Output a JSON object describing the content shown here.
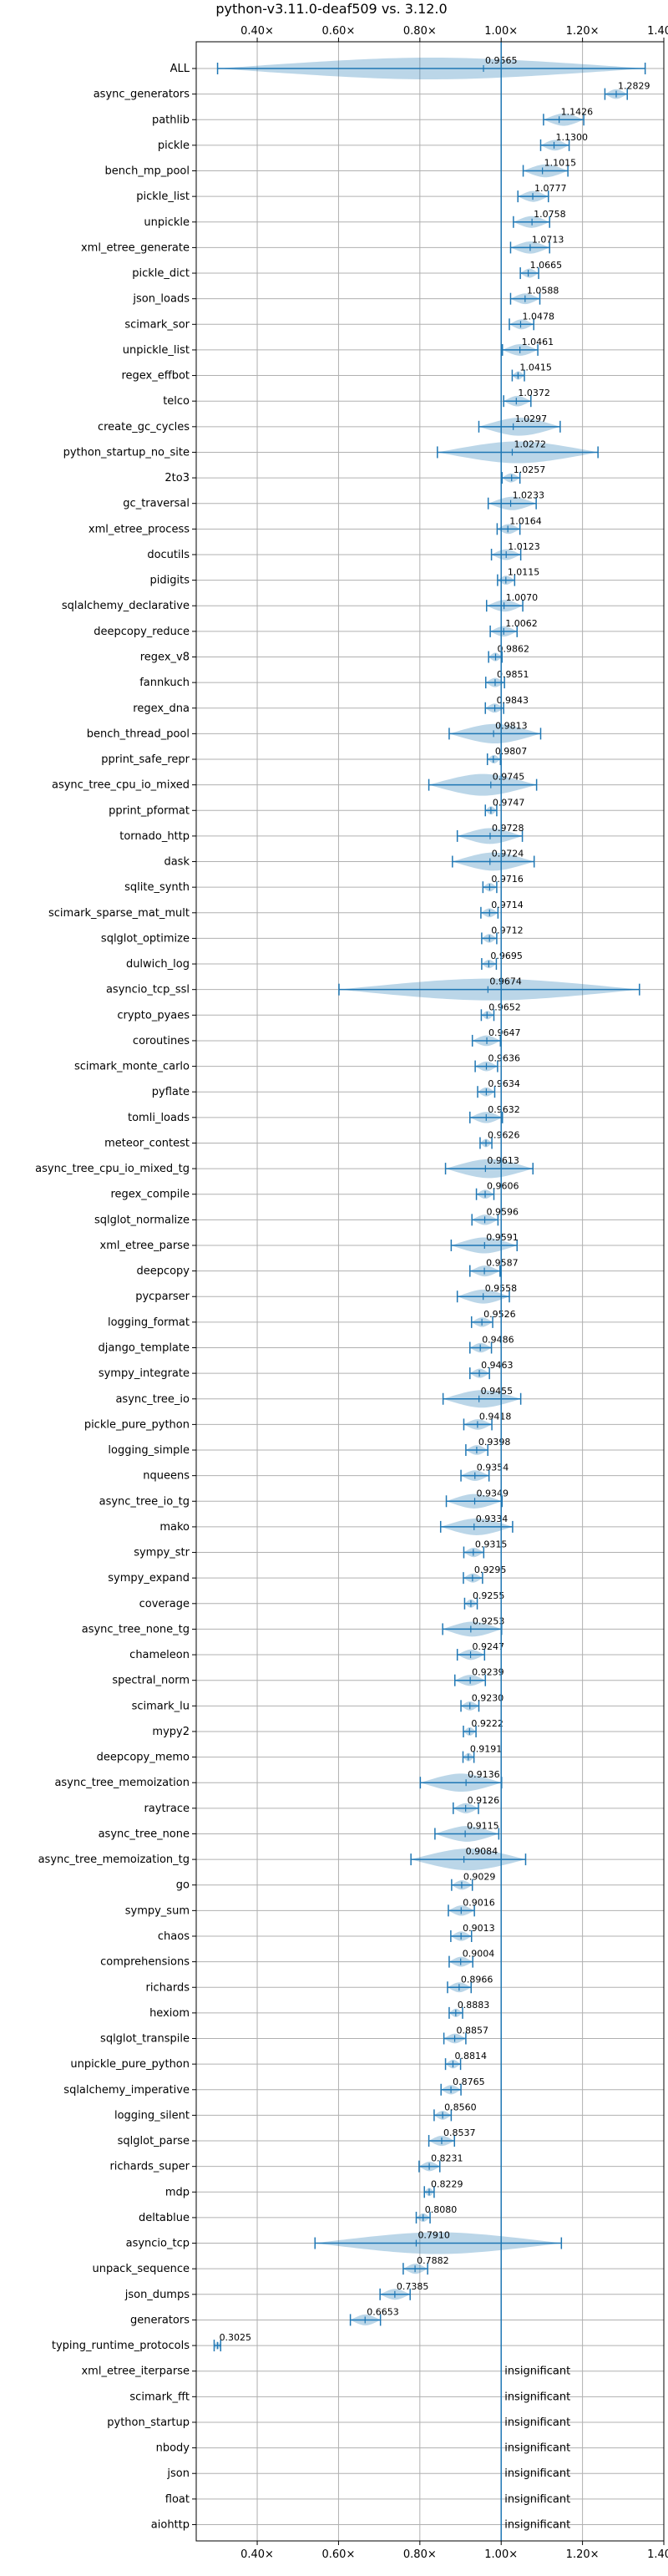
{
  "chart_data": {
    "type": "violin",
    "title": "python-v3.11.0-deaf509 vs. 3.12.0",
    "xlabel": "",
    "ylabel": "",
    "x_range": [
      0.25,
      1.4
    ],
    "x_ticks": [
      0.4,
      0.6,
      0.8,
      1.0,
      1.2,
      1.4
    ],
    "x_tick_labels": [
      "0.40×",
      "0.60×",
      "0.80×",
      "1.00×",
      "1.20×",
      "1.40×"
    ],
    "reference_line": 1.0,
    "grid": true,
    "colors": {
      "violin": "#1f77b4",
      "violin_alpha": 0.3,
      "line": "#1f77b4",
      "grid": "#b0b0b0"
    },
    "insignificant_label": "insignificant",
    "categories": [
      {
        "name": "ALL",
        "mean": 0.9565,
        "min": 0.3025,
        "max": 1.3541
      },
      {
        "name": "async_generators",
        "mean": 1.2829,
        "min": 1.2551,
        "max": 1.3101
      },
      {
        "name": "pathlib",
        "mean": 1.1426,
        "min": 1.1041,
        "max": 1.2031
      },
      {
        "name": "pickle",
        "mean": 1.13,
        "min": 1.0971,
        "max": 1.1671
      },
      {
        "name": "bench_mp_pool",
        "mean": 1.1015,
        "min": 1.0541,
        "max": 1.1641
      },
      {
        "name": "pickle_list",
        "mean": 1.0777,
        "min": 1.0411,
        "max": 1.1161
      },
      {
        "name": "unpickle",
        "mean": 1.0758,
        "min": 1.0301,
        "max": 1.1191
      },
      {
        "name": "xml_etree_generate",
        "mean": 1.0713,
        "min": 1.0231,
        "max": 1.1191
      },
      {
        "name": "pickle_dict",
        "mean": 1.0665,
        "min": 1.0471,
        "max": 1.0921
      },
      {
        "name": "json_loads",
        "mean": 1.0588,
        "min": 1.0231,
        "max": 1.0951
      },
      {
        "name": "scimark_sor",
        "mean": 1.0478,
        "min": 1.0201,
        "max": 1.0801
      },
      {
        "name": "unpickle_list",
        "mean": 1.0461,
        "min": 1.0031,
        "max": 1.0901
      },
      {
        "name": "regex_effbot",
        "mean": 1.0415,
        "min": 1.0271,
        "max": 1.0571
      },
      {
        "name": "telco",
        "mean": 1.0372,
        "min": 1.0061,
        "max": 1.0731
      },
      {
        "name": "create_gc_cycles",
        "mean": 1.0297,
        "min": 0.9451,
        "max": 1.1451
      },
      {
        "name": "python_startup_no_site",
        "mean": 1.0272,
        "min": 0.8431,
        "max": 1.2381
      },
      {
        "name": "2to3",
        "mean": 1.0257,
        "min": 1.0021,
        "max": 1.0461
      },
      {
        "name": "gc_traversal",
        "mean": 1.0233,
        "min": 0.9681,
        "max": 1.0861
      },
      {
        "name": "xml_etree_process",
        "mean": 1.0164,
        "min": 0.9901,
        "max": 1.0461
      },
      {
        "name": "docutils",
        "mean": 1.0123,
        "min": 0.9761,
        "max": 1.0481
      },
      {
        "name": "pidigits",
        "mean": 1.0115,
        "min": 0.9911,
        "max": 1.0331
      },
      {
        "name": "sqlalchemy_declarative",
        "mean": 1.007,
        "min": 0.9641,
        "max": 1.0531
      },
      {
        "name": "deepcopy_reduce",
        "mean": 1.0062,
        "min": 0.9731,
        "max": 1.0391
      },
      {
        "name": "regex_v8",
        "mean": 0.9862,
        "min": 0.9691,
        "max": 1.0021
      },
      {
        "name": "fannkuch",
        "mean": 0.9851,
        "min": 0.9621,
        "max": 1.0081
      },
      {
        "name": "regex_dna",
        "mean": 0.9843,
        "min": 0.9611,
        "max": 1.0061
      },
      {
        "name": "bench_thread_pool",
        "mean": 0.9813,
        "min": 0.8721,
        "max": 1.0971
      },
      {
        "name": "pprint_safe_repr",
        "mean": 0.9807,
        "min": 0.9661,
        "max": 0.9981
      },
      {
        "name": "async_tree_cpu_io_mixed",
        "mean": 0.9745,
        "min": 0.8221,
        "max": 1.0871
      },
      {
        "name": "pprint_pformat",
        "mean": 0.9747,
        "min": 0.9611,
        "max": 0.9891
      },
      {
        "name": "tornado_http",
        "mean": 0.9728,
        "min": 0.8921,
        "max": 1.0521
      },
      {
        "name": "dask",
        "mean": 0.9724,
        "min": 0.8801,
        "max": 1.0811
      },
      {
        "name": "sqlite_synth",
        "mean": 0.9716,
        "min": 0.9551,
        "max": 0.9891
      },
      {
        "name": "scimark_sparse_mat_mult",
        "mean": 0.9714,
        "min": 0.9501,
        "max": 0.9921
      },
      {
        "name": "sqlglot_optimize",
        "mean": 0.9712,
        "min": 0.9521,
        "max": 0.9891
      },
      {
        "name": "dulwich_log",
        "mean": 0.9695,
        "min": 0.9521,
        "max": 0.9881
      },
      {
        "name": "asyncio_tcp_ssl",
        "mean": 0.9674,
        "min": 0.6011,
        "max": 1.3401
      },
      {
        "name": "crypto_pyaes",
        "mean": 0.9652,
        "min": 0.9511,
        "max": 0.9821
      },
      {
        "name": "coroutines",
        "mean": 0.9647,
        "min": 0.9291,
        "max": 0.9981
      },
      {
        "name": "scimark_monte_carlo",
        "mean": 0.9636,
        "min": 0.9361,
        "max": 0.9911
      },
      {
        "name": "pyflate",
        "mean": 0.9634,
        "min": 0.9421,
        "max": 0.9841
      },
      {
        "name": "tomli_loads",
        "mean": 0.9632,
        "min": 0.9231,
        "max": 1.0031
      },
      {
        "name": "meteor_contest",
        "mean": 0.9626,
        "min": 0.9481,
        "max": 0.9771
      },
      {
        "name": "async_tree_cpu_io_mixed_tg",
        "mean": 0.9613,
        "min": 0.8631,
        "max": 1.0781
      },
      {
        "name": "regex_compile",
        "mean": 0.9606,
        "min": 0.9391,
        "max": 0.9821
      },
      {
        "name": "sqlglot_normalize",
        "mean": 0.9596,
        "min": 0.9281,
        "max": 0.9921
      },
      {
        "name": "xml_etree_parse",
        "mean": 0.9591,
        "min": 0.8771,
        "max": 1.0391
      },
      {
        "name": "deepcopy",
        "mean": 0.9587,
        "min": 0.9231,
        "max": 0.9971
      },
      {
        "name": "pycparser",
        "mean": 0.9558,
        "min": 0.8921,
        "max": 1.0201
      },
      {
        "name": "logging_format",
        "mean": 0.9526,
        "min": 0.9271,
        "max": 0.9791
      },
      {
        "name": "django_template",
        "mean": 0.9486,
        "min": 0.9231,
        "max": 0.9761
      },
      {
        "name": "sympy_integrate",
        "mean": 0.9463,
        "min": 0.9231,
        "max": 0.9711
      },
      {
        "name": "async_tree_io",
        "mean": 0.9455,
        "min": 0.8571,
        "max": 1.0481
      },
      {
        "name": "pickle_pure_python",
        "mean": 0.9418,
        "min": 0.9081,
        "max": 0.9771
      },
      {
        "name": "logging_simple",
        "mean": 0.9398,
        "min": 0.9131,
        "max": 0.9671
      },
      {
        "name": "nqueens",
        "mean": 0.9354,
        "min": 0.9011,
        "max": 0.9701
      },
      {
        "name": "async_tree_io_tg",
        "mean": 0.9349,
        "min": 0.8651,
        "max": 1.0021
      },
      {
        "name": "mako",
        "mean": 0.9334,
        "min": 0.8511,
        "max": 1.0281
      },
      {
        "name": "sympy_str",
        "mean": 0.9315,
        "min": 0.9081,
        "max": 0.9571
      },
      {
        "name": "sympy_expand",
        "mean": 0.9295,
        "min": 0.9071,
        "max": 0.9541
      },
      {
        "name": "coverage",
        "mean": 0.9255,
        "min": 0.9101,
        "max": 0.9411
      },
      {
        "name": "async_tree_none_tg",
        "mean": 0.9253,
        "min": 0.8561,
        "max": 1.0011
      },
      {
        "name": "chameleon",
        "mean": 0.9247,
        "min": 0.8921,
        "max": 0.9591
      },
      {
        "name": "spectral_norm",
        "mean": 0.9239,
        "min": 0.8861,
        "max": 0.9611
      },
      {
        "name": "scimark_lu",
        "mean": 0.923,
        "min": 0.9011,
        "max": 0.9451
      },
      {
        "name": "mypy2",
        "mean": 0.9222,
        "min": 0.9071,
        "max": 0.9381
      },
      {
        "name": "deepcopy_memo",
        "mean": 0.9191,
        "min": 0.9061,
        "max": 0.9331
      },
      {
        "name": "async_tree_memoization",
        "mean": 0.9136,
        "min": 0.8011,
        "max": 1.0011
      },
      {
        "name": "raytrace",
        "mean": 0.9126,
        "min": 0.8821,
        "max": 0.9441
      },
      {
        "name": "async_tree_none",
        "mean": 0.9115,
        "min": 0.8371,
        "max": 0.9941
      },
      {
        "name": "async_tree_memoization_tg",
        "mean": 0.9084,
        "min": 0.7781,
        "max": 1.0601
      },
      {
        "name": "go",
        "mean": 0.9029,
        "min": 0.8781,
        "max": 0.9291
      },
      {
        "name": "sympy_sum",
        "mean": 0.9016,
        "min": 0.8701,
        "max": 0.9341
      },
      {
        "name": "chaos",
        "mean": 0.9013,
        "min": 0.8761,
        "max": 0.9271
      },
      {
        "name": "comprehensions",
        "mean": 0.9004,
        "min": 0.8721,
        "max": 0.9301
      },
      {
        "name": "richards",
        "mean": 0.8966,
        "min": 0.8681,
        "max": 0.9261
      },
      {
        "name": "hexiom",
        "mean": 0.8883,
        "min": 0.8721,
        "max": 0.9051
      },
      {
        "name": "sqlglot_transpile",
        "mean": 0.8857,
        "min": 0.8591,
        "max": 0.9131
      },
      {
        "name": "unpickle_pure_python",
        "mean": 0.8814,
        "min": 0.8631,
        "max": 0.9001
      },
      {
        "name": "sqlalchemy_imperative",
        "mean": 0.8765,
        "min": 0.8521,
        "max": 0.9011
      },
      {
        "name": "logging_silent",
        "mean": 0.856,
        "min": 0.8351,
        "max": 0.8771
      },
      {
        "name": "sqlglot_parse",
        "mean": 0.8537,
        "min": 0.8221,
        "max": 0.8851
      },
      {
        "name": "richards_super",
        "mean": 0.8231,
        "min": 0.7981,
        "max": 0.8491
      },
      {
        "name": "mdp",
        "mean": 0.8229,
        "min": 0.8111,
        "max": 0.8351
      },
      {
        "name": "deltablue",
        "mean": 0.808,
        "min": 0.7911,
        "max": 0.8251
      },
      {
        "name": "asyncio_tcp",
        "mean": 0.791,
        "min": 0.5421,
        "max": 1.1481
      },
      {
        "name": "unpack_sequence",
        "mean": 0.7882,
        "min": 0.7591,
        "max": 0.8191
      },
      {
        "name": "json_dumps",
        "mean": 0.7385,
        "min": 0.7021,
        "max": 0.7761
      },
      {
        "name": "generators",
        "mean": 0.6653,
        "min": 0.6291,
        "max": 0.7031
      },
      {
        "name": "typing_runtime_protocols",
        "mean": 0.3025,
        "min": 0.2941,
        "max": 0.3101
      },
      {
        "name": "xml_etree_iterparse",
        "insignificant": true
      },
      {
        "name": "scimark_fft",
        "insignificant": true
      },
      {
        "name": "python_startup",
        "insignificant": true
      },
      {
        "name": "nbody",
        "insignificant": true
      },
      {
        "name": "json",
        "insignificant": true
      },
      {
        "name": "float",
        "insignificant": true
      },
      {
        "name": "aiohttp",
        "insignificant": true
      }
    ]
  }
}
